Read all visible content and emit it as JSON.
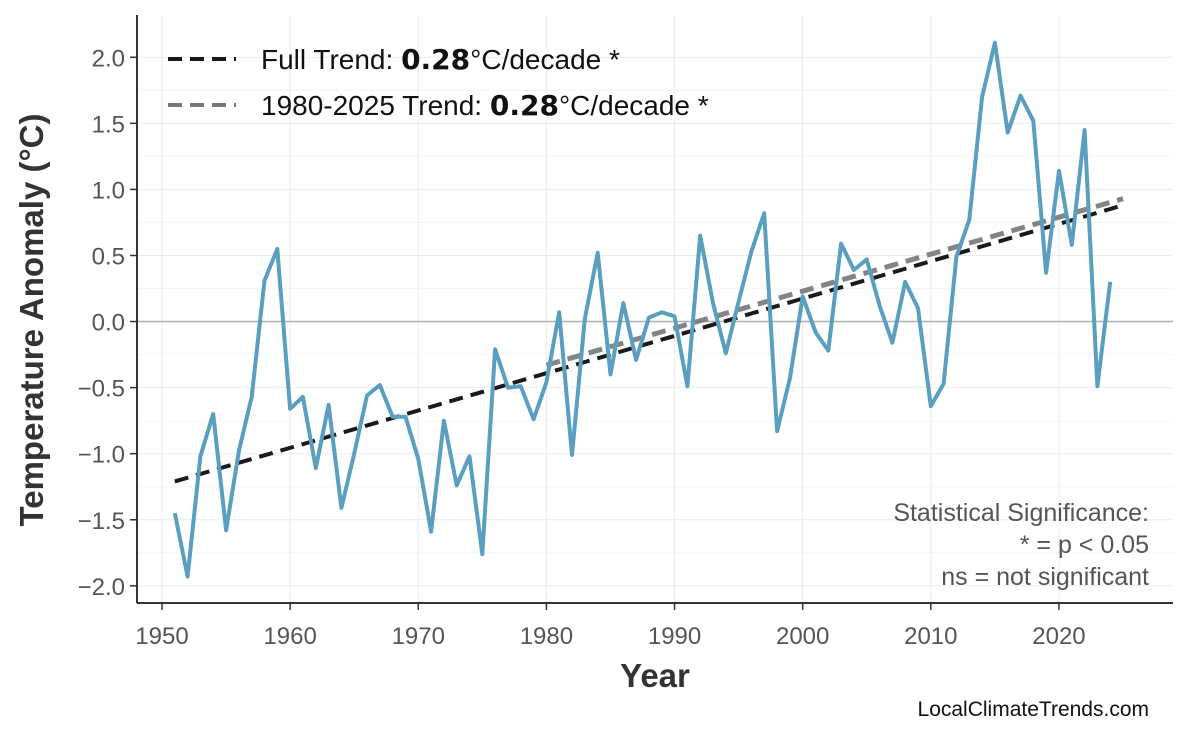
{
  "chart_data": {
    "type": "line",
    "title": "",
    "xlabel": "Year",
    "ylabel": "Temperature Anomaly (°C)",
    "xlim": [
      1948.05,
      2028.9
    ],
    "ylim": [
      -2.13,
      2.32
    ],
    "x_ticks": [
      1950,
      1960,
      1970,
      1980,
      1990,
      2000,
      2010,
      2020
    ],
    "y_ticks": [
      2.0,
      1.5,
      1.0,
      0.5,
      0.0,
      -0.5,
      -1.0,
      -1.5,
      -2.0
    ],
    "y_tick_labels": [
      "2.0",
      "1.5",
      "1.0",
      "0.5",
      "0.0",
      "−0.5",
      "−1.0",
      "−1.5",
      "−2.0"
    ],
    "grid": true,
    "zero_line": true,
    "series": [
      {
        "color": "#5a9fc0",
        "x": [
          1951,
          1952,
          1953,
          1954,
          1955,
          1956,
          1957,
          1958,
          1959,
          1960,
          1961,
          1962,
          1963,
          1964,
          1965,
          1966,
          1967,
          1968,
          1969,
          1970,
          1971,
          1972,
          1973,
          1974,
          1975,
          1976,
          1977,
          1978,
          1979,
          1980,
          1981,
          1982,
          1983,
          1984,
          1985,
          1986,
          1987,
          1988,
          1989,
          1990,
          1991,
          1992,
          1993,
          1994,
          1995,
          1996,
          1997,
          1998,
          1999,
          2000,
          2001,
          2002,
          2003,
          2004,
          2005,
          2006,
          2007,
          2008,
          2009,
          2010,
          2011,
          2012,
          2013,
          2014,
          2015,
          2016,
          2017,
          2018,
          2019,
          2020,
          2021,
          2022,
          2023,
          2024
        ],
        "y": [
          -1.45,
          -1.93,
          -1.02,
          -0.7,
          -1.58,
          -0.98,
          -0.57,
          0.31,
          0.55,
          -0.66,
          -0.57,
          -1.11,
          -0.63,
          -1.41,
          -1.0,
          -0.56,
          -0.48,
          -0.72,
          -0.72,
          -1.04,
          -1.59,
          -0.75,
          -1.24,
          -1.02,
          -1.76,
          -0.21,
          -0.5,
          -0.49,
          -0.74,
          -0.46,
          0.07,
          -1.01,
          0.02,
          0.52,
          -0.4,
          0.14,
          -0.29,
          0.03,
          0.07,
          0.04,
          -0.49,
          0.65,
          0.14,
          -0.24,
          0.15,
          0.53,
          0.82,
          -0.83,
          -0.43,
          0.19,
          -0.08,
          -0.22,
          0.59,
          0.39,
          0.47,
          0.12,
          -0.16,
          0.3,
          0.1,
          -0.64,
          -0.47,
          0.49,
          0.77,
          1.7,
          2.11,
          1.43,
          1.71,
          1.52,
          0.37,
          1.14,
          0.58,
          1.45,
          -0.49,
          0.3
        ]
      }
    ],
    "trends": [
      {
        "name": "Full Trend",
        "value": "0.28",
        "unit": "°C/decade *",
        "x": [
          1951,
          2025
        ],
        "y": [
          -1.21,
          0.88
        ],
        "color": "#1a1a1a"
      },
      {
        "name": "1980-2025 Trend",
        "value": "0.28",
        "unit": "°C/decade *",
        "x": [
          1980,
          2025
        ],
        "y": [
          -0.33,
          0.93
        ],
        "color": "#777777"
      }
    ],
    "legend_position": "top-left",
    "annotation": [
      "Statistical Significance:",
      "* = p < 0.05",
      "ns = not significant"
    ],
    "caption": "LocalClimateTrends.com"
  }
}
